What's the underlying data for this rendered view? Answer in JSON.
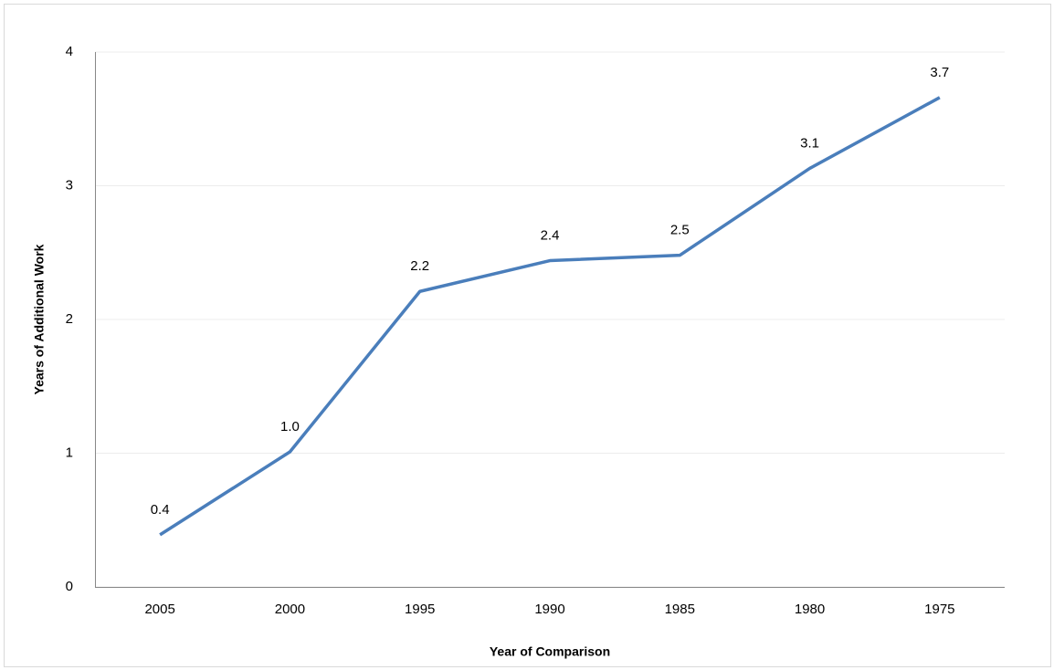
{
  "chart_data": {
    "type": "line",
    "x_label": "Year of Comparison",
    "y_label": "Years of Additional Work",
    "categories": [
      "2005",
      "2000",
      "1995",
      "1990",
      "1985",
      "1980",
      "1975"
    ],
    "values": [
      0.39,
      1.01,
      2.21,
      2.44,
      2.48,
      3.13,
      3.66
    ],
    "value_labels": [
      "0.4",
      "1.0",
      "2.2",
      "2.4",
      "2.5",
      "3.1",
      "3.7"
    ],
    "color": "#4a7ebb",
    "ylim": [
      0,
      4
    ],
    "yticks": [
      0,
      1,
      2,
      3,
      4
    ],
    "grid": true
  }
}
